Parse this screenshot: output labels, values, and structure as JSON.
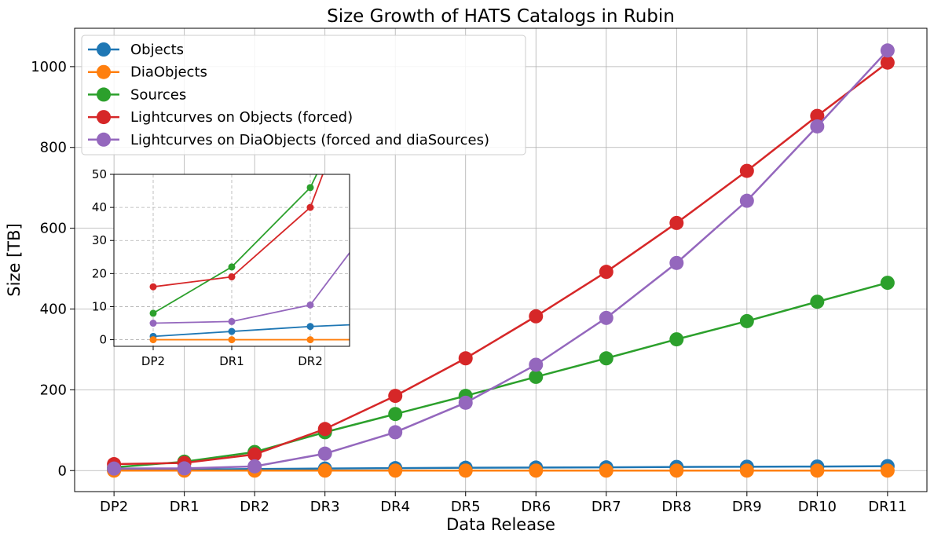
{
  "chart_data": {
    "type": "line",
    "title": "Size Growth of HATS Catalogs in Rubin",
    "xlabel": "Data Release",
    "ylabel": "Size [TB]",
    "categories": [
      "DP2",
      "DR1",
      "DR2",
      "DR3",
      "DR4",
      "DR5",
      "DR6",
      "DR7",
      "DR8",
      "DR9",
      "DR10",
      "DR11"
    ],
    "ylim": [
      -52,
      1095
    ],
    "yticks": [
      0,
      200,
      400,
      600,
      800,
      1000
    ],
    "grid": true,
    "legend_position": "upper-left",
    "series": [
      {
        "name": "Objects",
        "color": "#1f77b4",
        "values": [
          1,
          2.5,
          4,
          5,
          6,
          7,
          7.5,
          8,
          9,
          9.5,
          10,
          11
        ]
      },
      {
        "name": "DiaObjects",
        "color": "#ff7f0e",
        "values": [
          0,
          0,
          0,
          0,
          0,
          0,
          0,
          0,
          0,
          0,
          0,
          0
        ]
      },
      {
        "name": "Sources",
        "color": "#2ca02c",
        "values": [
          8,
          22,
          46,
          95,
          140,
          185,
          232,
          278,
          325,
          370,
          418,
          465
        ]
      },
      {
        "name": "Lightcurves on Objects (forced)",
        "color": "#d62728",
        "values": [
          16,
          19,
          40,
          103,
          185,
          278,
          382,
          492,
          613,
          742,
          878,
          1010
        ]
      },
      {
        "name": "Lightcurves on DiaObjects (forced and diaSources)",
        "color": "#9467bd",
        "values": [
          5,
          5.5,
          10.5,
          42,
          95,
          168,
          262,
          378,
          514,
          668,
          852,
          1040
        ]
      }
    ],
    "inset": {
      "categories_shown": [
        "DP2",
        "DR1",
        "DR2"
      ],
      "xlim_index": [
        -0.5,
        2.5
      ],
      "ylim": [
        -2,
        50
      ],
      "yticks": [
        0,
        10,
        20,
        30,
        40,
        50
      ],
      "grid": "dashed"
    }
  }
}
